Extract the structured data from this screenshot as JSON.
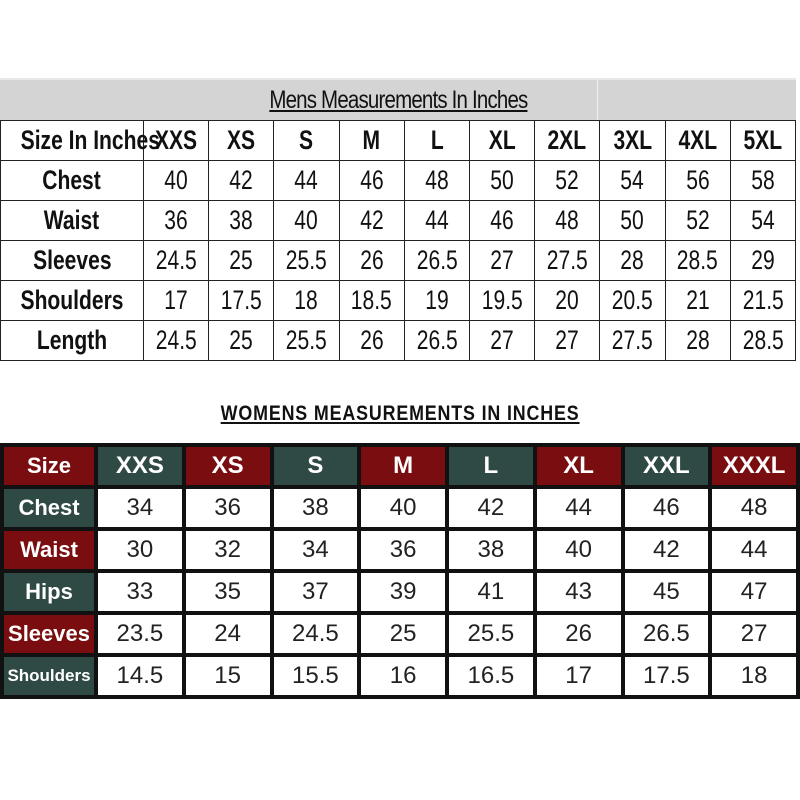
{
  "mens": {
    "title": "Mens Measurements In Inches",
    "header_label": "Size In Inches",
    "sizes": [
      "XXS",
      "XS",
      "S",
      "M",
      "L",
      "XL",
      "2XL",
      "3XL",
      "4XL",
      "5XL"
    ],
    "rows": [
      {
        "label": "Chest",
        "values": [
          "40",
          "42",
          "44",
          "46",
          "48",
          "50",
          "52",
          "54",
          "56",
          "58"
        ]
      },
      {
        "label": "Waist",
        "values": [
          "36",
          "38",
          "40",
          "42",
          "44",
          "46",
          "48",
          "50",
          "52",
          "54"
        ]
      },
      {
        "label": "Sleeves",
        "values": [
          "24.5",
          "25",
          "25.5",
          "26",
          "26.5",
          "27",
          "27.5",
          "28",
          "28.5",
          "29"
        ]
      },
      {
        "label": "Shoulders",
        "values": [
          "17",
          "17.5",
          "18",
          "18.5",
          "19",
          "19.5",
          "20",
          "20.5",
          "21",
          "21.5"
        ]
      },
      {
        "label": "Length",
        "values": [
          "24.5",
          "25",
          "25.5",
          "26",
          "26.5",
          "27",
          "27",
          "27.5",
          "28",
          "28.5"
        ]
      }
    ]
  },
  "womens": {
    "title": "WOMENS MEASUREMENTS IN INCHES",
    "header_label": "Size",
    "sizes": [
      "XXS",
      "XS",
      "S",
      "M",
      "L",
      "XL",
      "XXL",
      "XXXL"
    ],
    "colors": {
      "maroon": "#7a0d0f",
      "teal": "#2f4a45"
    },
    "rows": [
      {
        "label": "Chest",
        "values": [
          "34",
          "36",
          "38",
          "40",
          "42",
          "44",
          "46",
          "48"
        ]
      },
      {
        "label": "Waist",
        "values": [
          "30",
          "32",
          "34",
          "36",
          "38",
          "40",
          "42",
          "44"
        ]
      },
      {
        "label": "Hips",
        "values": [
          "33",
          "35",
          "37",
          "39",
          "41",
          "43",
          "45",
          "47"
        ]
      },
      {
        "label": "Sleeves",
        "values": [
          "23.5",
          "24",
          "24.5",
          "25",
          "25.5",
          "26",
          "26.5",
          "27"
        ]
      },
      {
        "label": "Shoulders",
        "values": [
          "14.5",
          "15",
          "15.5",
          "16",
          "16.5",
          "17",
          "17.5",
          "18"
        ]
      }
    ]
  }
}
